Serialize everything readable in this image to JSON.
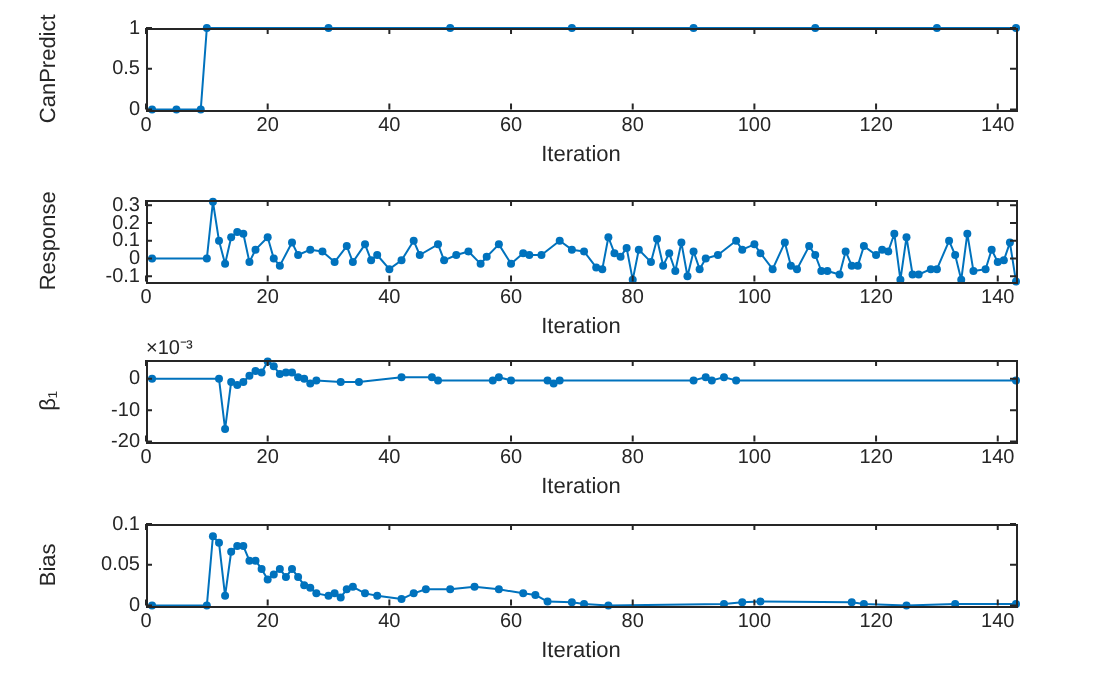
{
  "chart_data": [
    {
      "type": "line",
      "xlabel": "Iteration",
      "ylabel": "CanPredict",
      "xlim": [
        0,
        143
      ],
      "xticks": [
        0,
        20,
        40,
        60,
        80,
        100,
        120,
        140
      ],
      "ylim": [
        0,
        1
      ],
      "yticks": [
        0,
        0.5,
        1
      ],
      "marker": "circle",
      "series": [
        {
          "color": "#0072bd",
          "x": [
            1,
            5,
            9,
            10,
            30,
            50,
            70,
            90,
            110,
            130,
            143
          ],
          "values": [
            0,
            0,
            0,
            1,
            1,
            1,
            1,
            1,
            1,
            1,
            1
          ]
        }
      ]
    },
    {
      "type": "line",
      "xlabel": "Iteration",
      "ylabel": "Response",
      "xlim": [
        0,
        143
      ],
      "xticks": [
        0,
        20,
        40,
        60,
        80,
        100,
        120,
        140
      ],
      "ylim": [
        -0.13,
        0.33
      ],
      "yticks": [
        -0.1,
        0,
        0.1,
        0.2,
        0.3
      ],
      "marker": "circle",
      "series": [
        {
          "color": "#0072bd",
          "x": [
            1,
            10,
            11,
            12,
            13,
            14,
            15,
            16,
            17,
            18,
            20,
            21,
            22,
            24,
            25,
            27,
            29,
            31,
            33,
            34,
            36,
            37,
            38,
            40,
            42,
            44,
            45,
            48,
            49,
            51,
            53,
            55,
            56,
            58,
            60,
            62,
            63,
            65,
            68,
            70,
            72,
            74,
            75,
            76,
            77,
            78,
            79,
            80,
            81,
            83,
            84,
            85,
            86,
            87,
            88,
            89,
            90,
            91,
            92,
            94,
            97,
            98,
            100,
            101,
            103,
            105,
            106,
            107,
            109,
            110,
            111,
            112,
            114,
            115,
            116,
            117,
            118,
            120,
            121,
            122,
            123,
            124,
            125,
            126,
            127,
            129,
            130,
            132,
            133,
            134,
            135,
            136,
            138,
            139,
            140,
            141,
            142,
            143
          ],
          "values": [
            0,
            0,
            0.32,
            0.1,
            -0.03,
            0.12,
            0.15,
            0.14,
            -0.02,
            0.05,
            0.12,
            0,
            -0.04,
            0.09,
            0.02,
            0.05,
            0.04,
            -0.02,
            0.07,
            -0.02,
            0.08,
            -0.01,
            0.02,
            -0.06,
            -0.01,
            0.1,
            0.02,
            0.08,
            -0.01,
            0.02,
            0.04,
            -0.03,
            0.01,
            0.08,
            -0.03,
            0.03,
            0.02,
            0.02,
            0.1,
            0.05,
            0.04,
            -0.05,
            -0.06,
            0.12,
            0.03,
            0.01,
            0.06,
            -0.12,
            0.05,
            -0.02,
            0.11,
            -0.04,
            0.03,
            -0.07,
            0.09,
            -0.1,
            0.04,
            -0.06,
            0,
            0.02,
            0.1,
            0.05,
            0.08,
            0.03,
            -0.06,
            0.09,
            -0.04,
            -0.06,
            0.07,
            0.02,
            -0.07,
            -0.07,
            -0.09,
            0.04,
            -0.04,
            -0.04,
            0.07,
            0.02,
            0.05,
            0.04,
            0.14,
            -0.12,
            0.12,
            -0.09,
            -0.09,
            -0.06,
            -0.06,
            0.1,
            0.02,
            -0.12,
            0.14,
            -0.07,
            -0.06,
            0.05,
            -0.02,
            -0.01,
            0.09,
            -0.13
          ]
        }
      ]
    },
    {
      "type": "line",
      "xlabel": "Iteration",
      "ylabel": "β₁",
      "annotations": [
        "×10⁻³"
      ],
      "xlim": [
        0,
        143
      ],
      "xticks": [
        0,
        20,
        40,
        60,
        80,
        100,
        120,
        140
      ],
      "ylim": [
        -20,
        6
      ],
      "yticks": [
        -20,
        -10,
        0
      ],
      "marker": "circle",
      "series": [
        {
          "color": "#0072bd",
          "x": [
            1,
            12,
            13,
            14,
            15,
            16,
            17,
            18,
            19,
            20,
            21,
            22,
            23,
            24,
            25,
            26,
            27,
            28,
            32,
            35,
            42,
            47,
            48,
            57,
            58,
            60,
            66,
            67,
            68,
            90,
            92,
            93,
            95,
            97,
            143
          ],
          "values": [
            0,
            0,
            -16,
            -1,
            -2,
            -1,
            1,
            2.5,
            2,
            5.5,
            4,
            1.5,
            2,
            2,
            0.5,
            0,
            -1.5,
            -0.5,
            -1,
            -1,
            0.5,
            0.5,
            -0.5,
            -0.5,
            0.5,
            -0.5,
            -0.5,
            -1.5,
            -0.5,
            -0.5,
            0.5,
            -0.5,
            0.5,
            -0.5,
            -0.5
          ]
        }
      ]
    },
    {
      "type": "line",
      "xlabel": "Iteration",
      "ylabel": "Bias",
      "xlim": [
        0,
        143
      ],
      "xticks": [
        0,
        20,
        40,
        60,
        80,
        100,
        120,
        140
      ],
      "ylim": [
        0,
        0.1
      ],
      "yticks": [
        0,
        0.05,
        0.1
      ],
      "marker": "circle",
      "series": [
        {
          "color": "#0072bd",
          "x": [
            1,
            10,
            11,
            12,
            13,
            14,
            15,
            16,
            17,
            18,
            19,
            20,
            21,
            22,
            23,
            24,
            25,
            26,
            27,
            28,
            30,
            31,
            32,
            33,
            34,
            36,
            38,
            42,
            44,
            46,
            50,
            54,
            58,
            62,
            64,
            66,
            70,
            72,
            76,
            95,
            98,
            101,
            116,
            118,
            125,
            133,
            143
          ],
          "values": [
            0,
            0,
            0.085,
            0.077,
            0.012,
            0.066,
            0.073,
            0.073,
            0.055,
            0.055,
            0.045,
            0.032,
            0.038,
            0.045,
            0.035,
            0.045,
            0.035,
            0.025,
            0.022,
            0.015,
            0.012,
            0.015,
            0.01,
            0.02,
            0.023,
            0.015,
            0.012,
            0.008,
            0.015,
            0.02,
            0.02,
            0.023,
            0.02,
            0.015,
            0.013,
            0.005,
            0.004,
            0.002,
            0,
            0.002,
            0.004,
            0.005,
            0.004,
            0.002,
            0,
            0.002,
            0.002
          ]
        }
      ]
    }
  ]
}
